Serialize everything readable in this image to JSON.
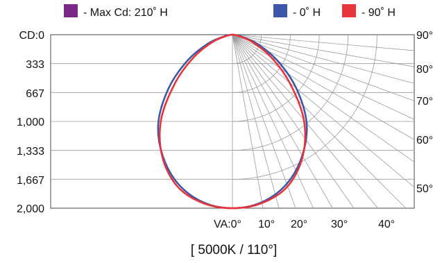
{
  "chart_data": {
    "type": "polar-photometric",
    "title": "",
    "caption": "[ 5000K / 110°]",
    "legend": [
      {
        "label": "-  Max Cd: 210˚ H",
        "color": "#7a2a86"
      },
      {
        "label": "- 0˚ H",
        "color": "#3b58a8"
      },
      {
        "label": "- 90˚ H",
        "color": "#e8333a"
      }
    ],
    "y_axis": {
      "label_prefix": "CD:",
      "ticks": [
        "CD:0",
        "333",
        "667",
        "1,000",
        "1,333",
        "1,667",
        "2,000"
      ],
      "range": [
        0,
        2000
      ]
    },
    "angle_ticks_right": [
      "90°",
      "80°",
      "70°",
      "60°",
      "50°"
    ],
    "angle_ticks_bottom": [
      "VA:0°",
      "10°",
      "20°",
      "30°",
      "40°"
    ],
    "series": [
      {
        "name": "- 0˚ H",
        "color": "#3b58a8",
        "angles_deg": [
          0,
          10,
          20,
          30,
          40,
          50,
          60,
          70,
          80,
          90
        ],
        "candela": [
          2000,
          1960,
          1830,
          1610,
          1330,
          960,
          600,
          300,
          80,
          0
        ]
      },
      {
        "name": "- 90˚ H",
        "color": "#e8333a",
        "angles_deg": [
          0,
          10,
          20,
          30,
          40,
          50,
          60,
          70,
          80,
          90
        ],
        "candela": [
          2000,
          1970,
          1860,
          1620,
          1280,
          860,
          510,
          240,
          60,
          0
        ]
      }
    ]
  }
}
